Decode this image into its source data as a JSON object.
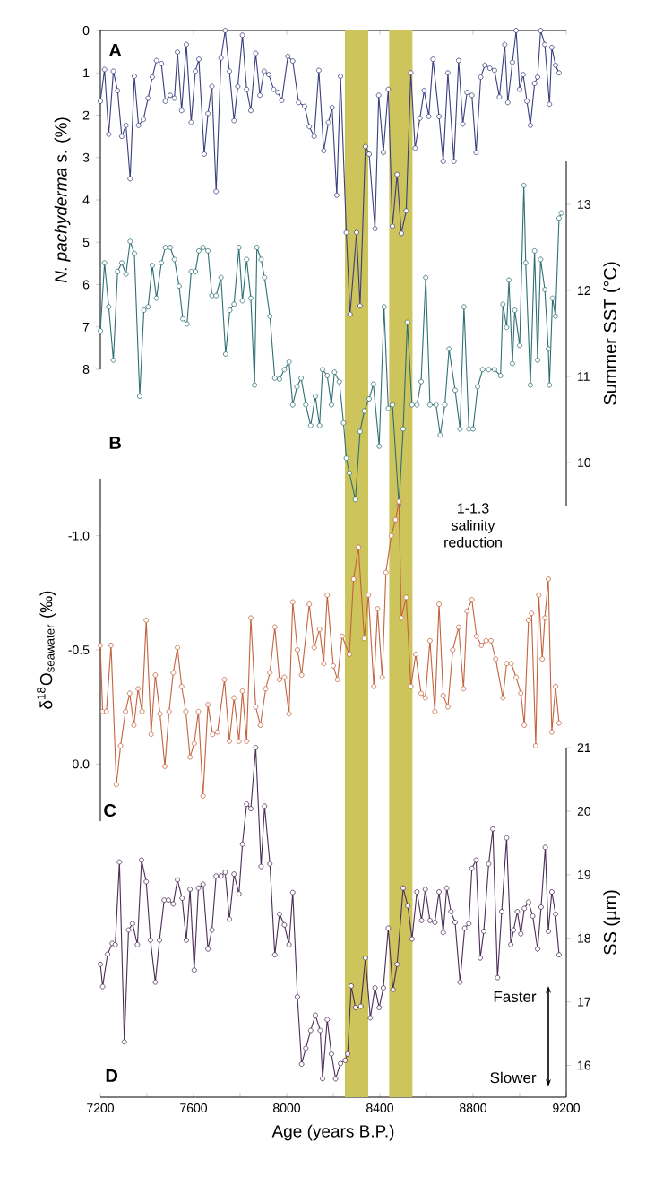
{
  "chart_data": [
    {
      "type": "line",
      "ylabel": "*N. pachyderma* s. (%)",
      "annotations": [
        "A"
      ],
      "marker": "circle",
      "color": "#3b3f7e",
      "xlim": [
        7200,
        9200
      ],
      "xticks": [
        {
          "value": 7200,
          "label": null
        },
        {
          "value": 7600,
          "label": null
        },
        {
          "value": 8000,
          "label": null
        },
        {
          "value": 8400,
          "label": null
        },
        {
          "value": 8800,
          "label": null
        },
        {
          "value": 9200,
          "label": null
        }
      ],
      "tick_labels": "y",
      "ylim": [
        8,
        0
      ],
      "yticks": [
        0,
        1,
        2,
        3,
        4,
        5,
        6,
        7,
        8
      ],
      "bands": [
        {
          "axis": "x",
          "from": 8250,
          "to": 8350,
          "color": "#cdc55c"
        },
        {
          "axis": "x",
          "from": 8440,
          "to": 8540,
          "color": "#cdc55c"
        }
      ],
      "x": [
        7200,
        7218,
        7236,
        7256,
        7274,
        7292,
        7310,
        7328,
        7346,
        7364,
        7385,
        7405,
        7423,
        7441,
        7462,
        7479,
        7500,
        7518,
        7531,
        7549,
        7569,
        7590,
        7608,
        7623,
        7646,
        7662,
        7679,
        7697,
        7718,
        7736,
        7754,
        7774,
        7790,
        7810,
        7828,
        7846,
        7867,
        7885,
        7903,
        7923,
        7944,
        7962,
        7979,
        8005,
        8026,
        8051,
        8077,
        8097,
        8118,
        8138,
        8159,
        8179,
        8195,
        8215,
        8231,
        8256,
        8272,
        8300,
        8315,
        8338,
        8354,
        8379,
        8395,
        8415,
        8436,
        8454,
        8474,
        8492,
        8513,
        8533,
        8551,
        8572,
        8590,
        8610,
        8628,
        8654,
        8672,
        8692,
        8718,
        8738,
        8756,
        8774,
        8795,
        8813,
        8833,
        8851,
        8872,
        8892,
        8913,
        8936,
        8949,
        8969,
        8985,
        9000,
        9015,
        9031,
        9046,
        9064,
        9077,
        9090,
        9108,
        9128,
        9138,
        9154,
        9169
      ],
      "values": [
        1.67,
        0.92,
        2.45,
        0.96,
        1.42,
        2.5,
        2.24,
        3.5,
        1.08,
        2.24,
        2.1,
        1.6,
        1.1,
        0.71,
        0.78,
        1.67,
        1.53,
        1.6,
        0.51,
        1.89,
        0.33,
        2.17,
        0.96,
        0.68,
        2.92,
        1.96,
        1.32,
        3.8,
        0.65,
        0,
        0.96,
        2.13,
        1.32,
        0.11,
        1.39,
        1.89,
        0.54,
        1.53,
        0.96,
        1.04,
        1.39,
        1.46,
        1.65,
        0.61,
        0.72,
        1.7,
        1.79,
        2.27,
        2.5,
        0.94,
        2.84,
        2.17,
        1.82,
        3.89,
        1.08,
        4.77,
        6.7,
        4.77,
        6.5,
        2.74,
        2.92,
        4.68,
        1.53,
        2.88,
        1.39,
        4.62,
        3.4,
        4.79,
        4.26,
        1.0,
        2.78,
        2.07,
        1.42,
        2.03,
        0.68,
        2.03,
        3.09,
        1.0,
        3.09,
        0.71,
        2.21,
        1.46,
        1.53,
        2.88,
        1.1,
        0.82,
        0.89,
        0.94,
        1.57,
        0.33,
        1.7,
        0.75,
        0,
        1.39,
        1.04,
        1.67,
        2.24,
        1.25,
        1.1,
        0,
        0.33,
        1.74,
        0.4,
        0.82,
        1.0
      ]
    },
    {
      "type": "line",
      "ylabel": "Summer SST (°C)",
      "annotations": [
        "B"
      ],
      "marker": "circle",
      "color": "#2f6f73",
      "xlim": [
        7200,
        9200
      ],
      "tick_labels": "y",
      "ylim": [
        9.5,
        13.5
      ],
      "yticks": [
        10,
        11,
        12,
        13
      ],
      "bands": [
        {
          "axis": "x",
          "from": 8250,
          "to": 8350,
          "color": "#cdc55c"
        },
        {
          "axis": "x",
          "from": 8440,
          "to": 8540,
          "color": "#cdc55c"
        }
      ],
      "x": [
        7200,
        7218,
        7236,
        7256,
        7274,
        7292,
        7310,
        7328,
        7346,
        7369,
        7387,
        7405,
        7423,
        7441,
        7462,
        7479,
        7500,
        7518,
        7538,
        7554,
        7572,
        7590,
        7608,
        7623,
        7641,
        7662,
        7679,
        7697,
        7718,
        7738,
        7756,
        7774,
        7795,
        7810,
        7828,
        7846,
        7862,
        7872,
        7890,
        7905,
        7928,
        7949,
        7969,
        7990,
        8010,
        8026,
        8044,
        8062,
        8082,
        8103,
        8123,
        8141,
        8154,
        8174,
        8192,
        8205,
        8226,
        8244,
        8256,
        8269,
        8295,
        8315,
        8333,
        8354,
        8372,
        8397,
        8418,
        8436,
        8454,
        8482,
        8500,
        8518,
        8538,
        8559,
        8577,
        8597,
        8615,
        8641,
        8659,
        8679,
        8697,
        8723,
        8744,
        8761,
        8782,
        8800,
        8820,
        8841,
        8867,
        8892,
        8918,
        8928,
        8944,
        8954,
        8969,
        8979,
        9000,
        9018,
        9026,
        9046,
        9064,
        9077,
        9090,
        9108,
        9123,
        9128,
        9141,
        9154,
        9169,
        9179
      ],
      "values": [
        11.53,
        12.32,
        11.81,
        11.19,
        12.22,
        12.32,
        12.19,
        12.57,
        12.43,
        10.77,
        11.77,
        11.81,
        12.29,
        11.91,
        12.32,
        12.5,
        12.5,
        12.36,
        12.05,
        11.67,
        11.61,
        12.22,
        12.22,
        12.46,
        12.5,
        12.46,
        11.94,
        11.94,
        12.15,
        11.26,
        11.77,
        11.84,
        12.5,
        11.88,
        12.36,
        11.91,
        10.9,
        12.5,
        12.36,
        12.15,
        11.7,
        10.98,
        10.97,
        11.08,
        11.17,
        10.67,
        10.88,
        10.98,
        10.67,
        10.43,
        10.77,
        10.43,
        11.08,
        11.01,
        10.67,
        11.05,
        10.94,
        10.46,
        10.05,
        9.88,
        9.57,
        10.36,
        10.6,
        10.74,
        10.91,
        10.19,
        11.81,
        10.63,
        10.67,
        9.5,
        10.39,
        11.63,
        10.67,
        10.67,
        10.94,
        12.15,
        10.67,
        10.67,
        10.32,
        10.67,
        11.32,
        10.84,
        10.39,
        11.81,
        10.39,
        10.39,
        10.88,
        11.08,
        11.08,
        11.08,
        11.01,
        11.84,
        11.57,
        12.12,
        11.15,
        11.77,
        11.36,
        13.22,
        12.32,
        10.9,
        12.46,
        11.19,
        12.36,
        12.01,
        11.32,
        10.9,
        11.91,
        11.7,
        12.84,
        12.9
      ]
    },
    {
      "type": "line",
      "ylabel": "δ$^{18}$O$_{seawater}$ (‰)",
      "annotations": [
        "C",
        "1-1.3 salinity reduction"
      ],
      "marker": "circle",
      "color": "#c4633f",
      "xlim": [
        7200,
        9200
      ],
      "tick_labels": "y",
      "ylim": [
        0.25,
        -1.25
      ],
      "yticks": [
        {
          "value": 0,
          "label": "0.0"
        },
        -0.5,
        {
          "value": -1,
          "label": "-1.0"
        }
      ],
      "bands": [
        {
          "axis": "x",
          "from": 8250,
          "to": 8350,
          "color": "#cdc55c"
        },
        {
          "axis": "x",
          "from": 8440,
          "to": 8540,
          "color": "#cdc55c"
        }
      ],
      "x": [
        7200,
        7210,
        7226,
        7246,
        7269,
        7287,
        7308,
        7326,
        7344,
        7362,
        7379,
        7397,
        7418,
        7436,
        7456,
        7477,
        7495,
        7513,
        7531,
        7549,
        7567,
        7585,
        7603,
        7621,
        7641,
        7662,
        7682,
        7703,
        7733,
        7754,
        7774,
        7795,
        7810,
        7828,
        7846,
        7867,
        7887,
        7910,
        7928,
        7949,
        7969,
        7990,
        8010,
        8026,
        8046,
        8064,
        8097,
        8118,
        8141,
        8159,
        8174,
        8200,
        8218,
        8238,
        8269,
        8287,
        8308,
        8333,
        8351,
        8374,
        8390,
        8410,
        8426,
        8449,
        8467,
        8482,
        8492,
        8513,
        8533,
        8554,
        8577,
        8595,
        8615,
        8636,
        8654,
        8672,
        8692,
        8713,
        8738,
        8759,
        8774,
        8795,
        8815,
        8836,
        8856,
        8877,
        8897,
        8928,
        8944,
        8964,
        8985,
        9005,
        9020,
        9038,
        9051,
        9069,
        9082,
        9097,
        9108,
        9123,
        9138,
        9154,
        9169
      ],
      "values": [
        -0.52,
        -0.23,
        -0.23,
        -0.52,
        0.09,
        -0.08,
        -0.23,
        -0.31,
        -0.17,
        -0.33,
        -0.23,
        -0.63,
        -0.13,
        -0.39,
        -0.22,
        0.01,
        -0.23,
        -0.4,
        -0.51,
        -0.34,
        -0.23,
        -0.03,
        -0.09,
        -0.23,
        0.14,
        -0.26,
        -0.13,
        -0.14,
        -0.37,
        -0.1,
        -0.29,
        -0.1,
        -0.32,
        -0.1,
        -0.64,
        -0.25,
        -0.17,
        -0.33,
        -0.4,
        -0.6,
        -0.37,
        -0.38,
        -0.22,
        -0.71,
        -0.5,
        -0.39,
        -0.7,
        -0.51,
        -0.59,
        -0.44,
        -0.74,
        -0.43,
        -0.37,
        -0.56,
        -0.48,
        -0.81,
        -0.95,
        -0.55,
        -0.74,
        -0.34,
        -0.68,
        -0.38,
        -0.84,
        -1.0,
        -1.07,
        -1.15,
        -0.64,
        -0.73,
        -0.34,
        -0.48,
        -0.31,
        -0.29,
        -0.54,
        -0.23,
        -0.7,
        -0.3,
        -0.25,
        -0.5,
        -0.6,
        -0.33,
        -0.67,
        -0.72,
        -0.56,
        -0.52,
        -0.54,
        -0.54,
        -0.46,
        -0.29,
        -0.44,
        -0.44,
        -0.38,
        -0.31,
        -0.17,
        -0.63,
        -0.66,
        -0.08,
        -0.74,
        -0.46,
        -0.64,
        -0.81,
        -0.14,
        -0.34,
        -0.18
      ]
    },
    {
      "type": "line",
      "xlabel": "Age (years B.P.)",
      "ylabel": "SS (µm)",
      "annotations": [
        "D",
        "Faster",
        "Slower"
      ],
      "marker": "circle",
      "color": "#4b2c57",
      "xlim": [
        7200,
        9200
      ],
      "xticks": [
        7200,
        {
          "value": 7400,
          "label": null
        },
        7600,
        {
          "value": 7800,
          "label": null
        },
        8000,
        {
          "value": 8200,
          "label": null
        },
        8400,
        {
          "value": 8600,
          "label": null
        },
        8800,
        {
          "value": 9000,
          "label": null
        },
        9200
      ],
      "ylim": [
        15.5,
        21
      ],
      "yticks": [
        16,
        17,
        18,
        19,
        20,
        21
      ],
      "bands": [
        {
          "axis": "x",
          "from": 8250,
          "to": 8350,
          "color": "#cdc55c"
        },
        {
          "axis": "x",
          "from": 8440,
          "to": 8540,
          "color": "#cdc55c"
        }
      ],
      "x": [
        7200,
        7210,
        7231,
        7251,
        7264,
        7282,
        7303,
        7321,
        7338,
        7359,
        7377,
        7397,
        7415,
        7436,
        7454,
        7474,
        7492,
        7513,
        7531,
        7551,
        7569,
        7585,
        7603,
        7621,
        7641,
        7662,
        7679,
        7697,
        7718,
        7736,
        7754,
        7774,
        7795,
        7810,
        7828,
        7846,
        7867,
        7890,
        7905,
        7928,
        7949,
        7969,
        7990,
        8010,
        8026,
        8046,
        8064,
        8082,
        8103,
        8123,
        8144,
        8154,
        8174,
        8192,
        8210,
        8231,
        8251,
        8262,
        8277,
        8295,
        8318,
        8338,
        8359,
        8379,
        8397,
        8415,
        8436,
        8456,
        8474,
        8500,
        8520,
        8538,
        8559,
        8579,
        8595,
        8615,
        8636,
        8654,
        8672,
        8687,
        8705,
        8723,
        8744,
        8764,
        8782,
        8795,
        8813,
        8831,
        8846,
        8867,
        8885,
        8905,
        8923,
        8944,
        8962,
        8974,
        8990,
        9005,
        9020,
        9038,
        9056,
        9077,
        9092,
        9110,
        9123,
        9138,
        9154,
        9169
      ],
      "values": [
        17.59,
        17.24,
        17.75,
        17.92,
        17.9,
        19.2,
        16.37,
        18.13,
        18.23,
        17.9,
        19.23,
        18.89,
        17.97,
        17.31,
        17.97,
        18.6,
        18.6,
        18.54,
        18.92,
        18.63,
        17.97,
        18.77,
        17.5,
        18.79,
        18.85,
        17.83,
        18.13,
        18.98,
        18.98,
        19.04,
        18.3,
        19.01,
        18.7,
        19.48,
        20.11,
        20.04,
        21.0,
        19.13,
        20.08,
        19.17,
        17.74,
        18.38,
        18.21,
        17.9,
        18.72,
        17.08,
        16.02,
        16.27,
        16.55,
        16.79,
        16.55,
        15.79,
        16.72,
        16.18,
        15.79,
        16.03,
        16.08,
        16.18,
        17.25,
        16.91,
        16.93,
        17.69,
        16.75,
        17.22,
        16.91,
        17.22,
        18.16,
        17.19,
        17.59,
        18.79,
        18.51,
        17.99,
        18.73,
        18.28,
        18.77,
        18.28,
        18.25,
        18.73,
        18.09,
        18.79,
        18.42,
        18.25,
        17.31,
        18.16,
        18.23,
        19.1,
        19.23,
        17.69,
        18.11,
        19.17,
        19.72,
        17.38,
        18.42,
        19.58,
        17.9,
        18.13,
        18.42,
        18.07,
        18.47,
        18.57,
        18.35,
        17.83,
        18.49,
        19.43,
        18.11,
        18.73,
        18.38,
        17.74
      ]
    }
  ]
}
